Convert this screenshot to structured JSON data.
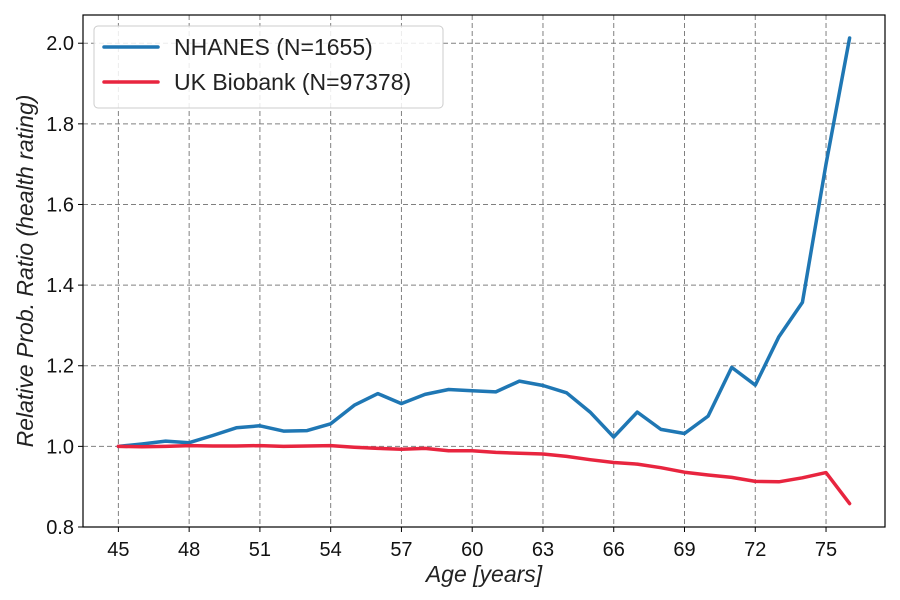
{
  "chart_data": {
    "type": "line",
    "title": "",
    "xlabel": "Age [years]",
    "ylabel": "Relative Prob. Ratio (health rating)",
    "xlim": [
      43.5,
      77.5
    ],
    "ylim": [
      0.8,
      2.07
    ],
    "xticks": [
      45,
      48,
      51,
      54,
      57,
      60,
      63,
      66,
      69,
      72,
      75
    ],
    "yticks": [
      0.8,
      1.0,
      1.2,
      1.4,
      1.6,
      1.8,
      2.0
    ],
    "ytick_labels": [
      "0.8",
      "1.0",
      "1.2",
      "1.4",
      "1.6",
      "1.8",
      "2.0"
    ],
    "grid": true,
    "legend_position": "top-left",
    "x": [
      45,
      46,
      47,
      48,
      49,
      50,
      51,
      52,
      53,
      54,
      55,
      56,
      57,
      58,
      59,
      60,
      61,
      62,
      63,
      64,
      65,
      66,
      67,
      68,
      69,
      70,
      71,
      72,
      73,
      74,
      75,
      76
    ],
    "series": [
      {
        "name": "NHANES (N=1655)",
        "color": "#1f77b4",
        "values": [
          1.0,
          1.006,
          1.013,
          1.009,
          1.027,
          1.046,
          1.051,
          1.038,
          1.039,
          1.056,
          1.102,
          1.131,
          1.106,
          1.129,
          1.141,
          1.138,
          1.135,
          1.162,
          1.151,
          1.133,
          1.085,
          1.023,
          1.085,
          1.042,
          1.032,
          1.075,
          1.196,
          1.152,
          1.272,
          1.357,
          1.7,
          2.013
        ]
      },
      {
        "name": "UK Biobank (N=97378)",
        "color": "#e8253f",
        "values": [
          1.0,
          0.999,
          1.0,
          1.002,
          1.001,
          1.001,
          1.002,
          1.0,
          1.001,
          1.002,
          0.998,
          0.995,
          0.993,
          0.995,
          0.989,
          0.989,
          0.985,
          0.983,
          0.981,
          0.975,
          0.967,
          0.96,
          0.956,
          0.947,
          0.936,
          0.929,
          0.923,
          0.913,
          0.912,
          0.922,
          0.935,
          0.858
        ]
      }
    ]
  }
}
